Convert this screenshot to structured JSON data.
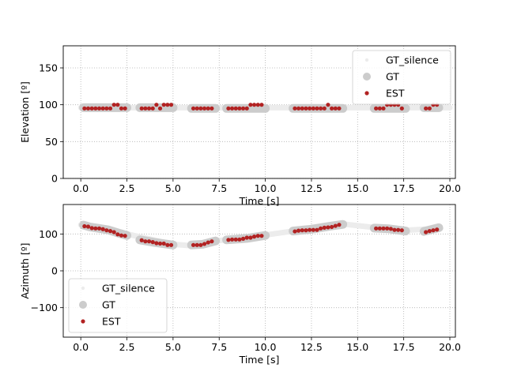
{
  "chart_data": [
    {
      "type": "scatter",
      "xlabel": "Time [s]",
      "ylabel": "Elevation [º]",
      "xlim": [
        -0.95,
        20.3
      ],
      "ylim": [
        0,
        180
      ],
      "xticks": [
        0,
        2.5,
        5,
        7.5,
        10,
        12.5,
        15,
        17.5,
        20
      ],
      "xticklabels": [
        "0.0",
        "2.5",
        "5.0",
        "7.5",
        "10.0",
        "12.5",
        "15.0",
        "17.5",
        "20.0"
      ],
      "yticks": [
        0,
        50,
        100,
        150
      ],
      "yticklabels": [
        "0",
        "50",
        "100",
        "150"
      ],
      "grid": true,
      "legend_location": "upper right",
      "legend": [
        "GT_silence",
        "GT",
        "EST"
      ],
      "series": [
        {
          "name": "GT_silence",
          "color": "#ececec",
          "segments": [
            {
              "x": [
                0.0,
                20.0
              ],
              "y": [
                96,
                96
              ]
            }
          ]
        },
        {
          "name": "GT",
          "color": "#cccccc",
          "segments": [
            {
              "x": [
                0.15,
                2.5
              ],
              "y": [
                96,
                96
              ]
            },
            {
              "x": [
                3.2,
                5.0
              ],
              "y": [
                96,
                96
              ]
            },
            {
              "x": [
                6.0,
                7.3
              ],
              "y": [
                95,
                95
              ]
            },
            {
              "x": [
                7.9,
                10.0
              ],
              "y": [
                95,
                95
              ]
            },
            {
              "x": [
                11.5,
                14.2
              ],
              "y": [
                95,
                95
              ]
            },
            {
              "x": [
                15.9,
                17.6
              ],
              "y": [
                95,
                95
              ]
            },
            {
              "x": [
                18.6,
                19.4
              ],
              "y": [
                96,
                96
              ]
            }
          ]
        },
        {
          "name": "EST",
          "color": "#b22222",
          "x": [
            0.2,
            0.4,
            0.6,
            0.8,
            1.0,
            1.2,
            1.4,
            1.6,
            1.8,
            2.0,
            2.2,
            2.4,
            3.3,
            3.5,
            3.7,
            3.9,
            4.1,
            4.3,
            4.5,
            4.7,
            4.9,
            6.1,
            6.3,
            6.5,
            6.7,
            6.9,
            7.1,
            8.0,
            8.2,
            8.4,
            8.6,
            8.8,
            9.0,
            9.2,
            9.4,
            9.6,
            9.8,
            11.6,
            11.8,
            12.0,
            12.2,
            12.4,
            12.6,
            12.8,
            13.0,
            13.2,
            13.4,
            13.6,
            13.8,
            14.0,
            16.0,
            16.2,
            16.4,
            16.6,
            16.8,
            17.0,
            17.2,
            17.4,
            18.7,
            18.9,
            19.1,
            19.3
          ],
          "y": [
            95,
            95,
            95,
            95,
            95,
            95,
            95,
            95,
            100,
            100,
            95,
            95,
            95,
            95,
            95,
            95,
            100,
            95,
            100,
            100,
            100,
            95,
            95,
            95,
            95,
            95,
            95,
            95,
            95,
            95,
            95,
            95,
            95,
            100,
            100,
            100,
            100,
            95,
            95,
            95,
            95,
            95,
            95,
            95,
            95,
            95,
            100,
            95,
            95,
            95,
            95,
            95,
            95,
            100,
            100,
            100,
            100,
            95,
            95,
            95,
            100,
            100
          ]
        }
      ]
    },
    {
      "type": "scatter",
      "xlabel": "Time [s]",
      "ylabel": "Azimuth [º]",
      "xlim": [
        -0.95,
        20.3
      ],
      "ylim": [
        -180,
        180
      ],
      "xticks": [
        0,
        2.5,
        5,
        7.5,
        10,
        12.5,
        15,
        17.5,
        20
      ],
      "xticklabels": [
        "0.0",
        "2.5",
        "5.0",
        "7.5",
        "10.0",
        "12.5",
        "15.0",
        "17.5",
        "20.0"
      ],
      "yticks": [
        -100,
        0,
        100
      ],
      "yticklabels": [
        "−100",
        "0",
        "100"
      ],
      "grid": true,
      "legend_location": "lower left",
      "legend": [
        "GT_silence",
        "GT",
        "EST"
      ],
      "series": [
        {
          "name": "GT_silence",
          "color": "#ececec",
          "segments": [
            {
              "x": [
                0.0,
                2.5,
                5.0,
                6.0,
                7.5,
                10.0,
                12.5,
                14.2,
                16.0,
                17.5,
                19.5
              ],
              "y": [
                125,
                100,
                72,
                68,
                82,
                97,
                115,
                127,
                117,
                110,
                115
              ]
            }
          ]
        },
        {
          "name": "GT",
          "color": "#cccccc",
          "segments": [
            {
              "x": [
                0.15,
                0.5,
                1.0,
                1.5,
                2.0,
                2.5
              ],
              "y": [
                124,
                119,
                115,
                111,
                103,
                96
              ]
            },
            {
              "x": [
                3.2,
                4.0,
                5.0
              ],
              "y": [
                84,
                77,
                70
              ]
            },
            {
              "x": [
                6.0,
                6.6,
                7.3
              ],
              "y": [
                70,
                72,
                81
              ]
            },
            {
              "x": [
                7.9,
                9.0,
                10.0
              ],
              "y": [
                84,
                88,
                96
              ]
            },
            {
              "x": [
                11.5,
                12.5,
                13.5,
                14.2
              ],
              "y": [
                108,
                113,
                121,
                126
              ]
            },
            {
              "x": [
                15.9,
                16.7,
                17.6
              ],
              "y": [
                116,
                114,
                108
              ]
            },
            {
              "x": [
                18.6,
                19.0,
                19.4
              ],
              "y": [
                107,
                112,
                117
              ]
            }
          ]
        },
        {
          "name": "EST",
          "color": "#b22222",
          "x": [
            0.2,
            0.4,
            0.6,
            0.8,
            1.0,
            1.2,
            1.4,
            1.6,
            1.8,
            2.0,
            2.2,
            2.4,
            3.3,
            3.5,
            3.7,
            3.9,
            4.1,
            4.3,
            4.5,
            4.7,
            4.9,
            6.1,
            6.3,
            6.5,
            6.7,
            6.9,
            7.1,
            8.0,
            8.2,
            8.4,
            8.6,
            8.8,
            9.0,
            9.2,
            9.4,
            9.6,
            9.8,
            11.6,
            11.8,
            12.0,
            12.2,
            12.4,
            12.6,
            12.8,
            13.0,
            13.2,
            13.4,
            13.6,
            13.8,
            14.0,
            16.0,
            16.2,
            16.4,
            16.6,
            16.8,
            17.0,
            17.2,
            17.4,
            18.7,
            18.9,
            19.1,
            19.3
          ],
          "y": [
            121,
            120,
            116,
            115,
            115,
            113,
            110,
            108,
            105,
            99,
            96,
            95,
            83,
            80,
            80,
            78,
            75,
            74,
            74,
            70,
            70,
            70,
            70,
            70,
            73,
            77,
            80,
            84,
            85,
            85,
            85,
            87,
            90,
            90,
            93,
            95,
            95,
            107,
            109,
            110,
            110,
            111,
            111,
            111,
            115,
            117,
            118,
            119,
            122,
            125,
            115,
            115,
            115,
            115,
            114,
            111,
            111,
            110,
            105,
            108,
            110,
            112
          ]
        }
      ]
    }
  ]
}
